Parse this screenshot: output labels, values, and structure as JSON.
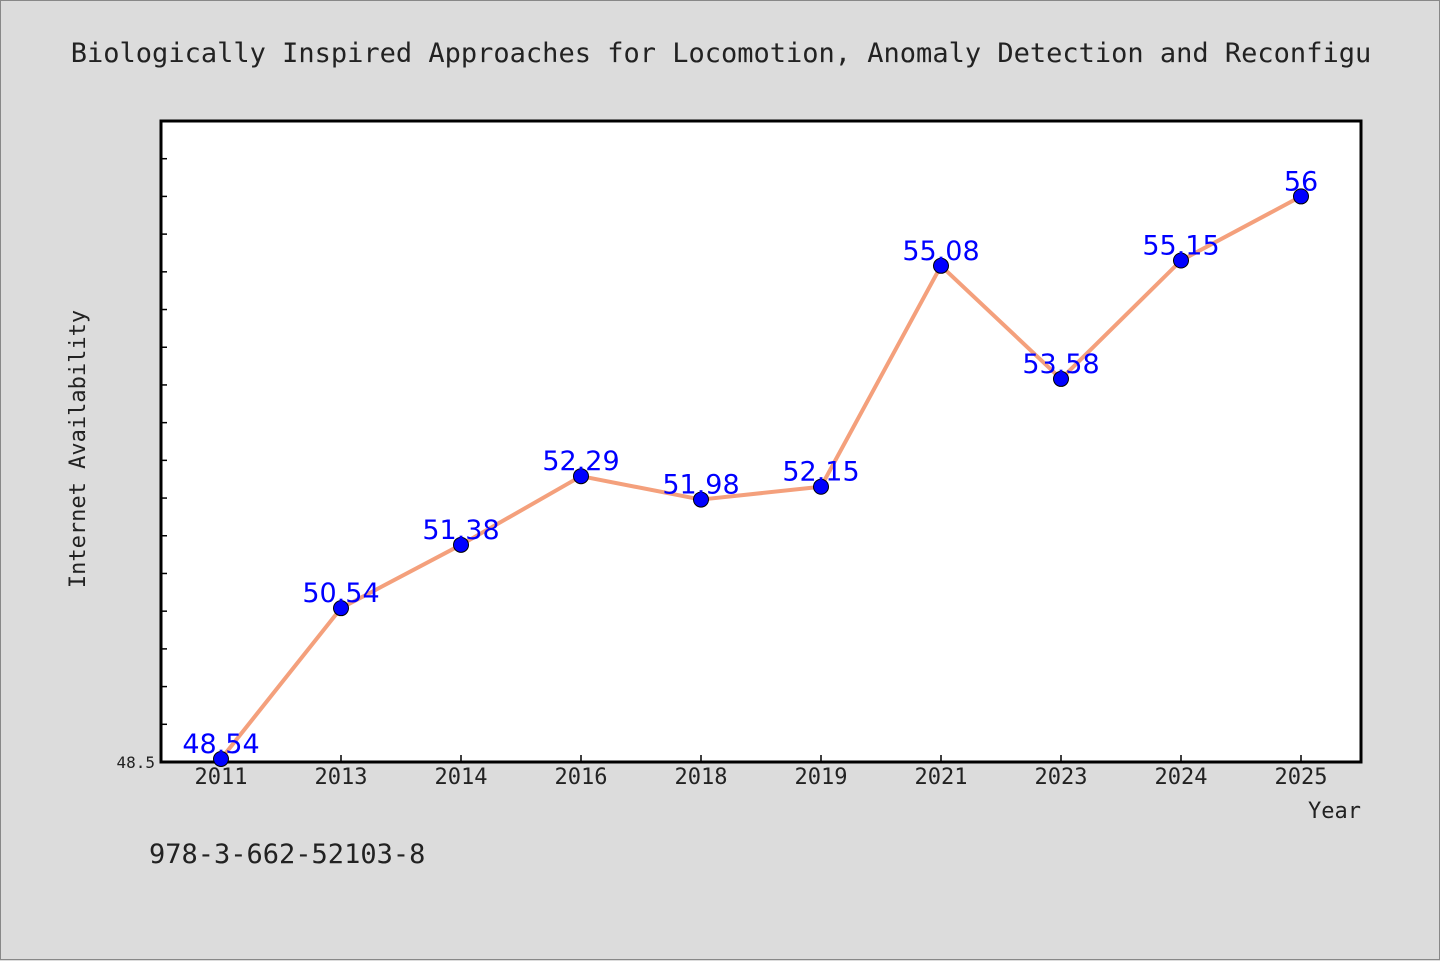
{
  "chart_data": {
    "type": "line",
    "title": "Biologically Inspired Approaches for Locomotion, Anomaly Detection and Reconfigu",
    "xlabel": "Year",
    "ylabel": "Internet Availability",
    "categories": [
      "2011",
      "2013",
      "2014",
      "2016",
      "2018",
      "2019",
      "2021",
      "2023",
      "2024",
      "2025"
    ],
    "series": [
      {
        "values": [
          48.54,
          50.54,
          51.38,
          52.29,
          51.98,
          52.15,
          55.08,
          53.58,
          55.15,
          56
        ]
      }
    ],
    "data_labels": [
      "48.54",
      "50.54",
      "51.38",
      "52.29",
      "51.98",
      "52.15",
      "55.08",
      "53.58",
      "55.15",
      "56"
    ],
    "ylim": [
      48.5,
      57.0
    ],
    "y_tick_labels": [
      "48.5"
    ],
    "grid": false,
    "legend": "none",
    "footer_text": "978-3-662-52103-8",
    "colors": {
      "background": "#dcdcdc",
      "plot_background": "#ffffff",
      "line": "#f4a07c",
      "marker": "#0000ff",
      "data_label": "#0000ff",
      "text": "#222222"
    }
  }
}
